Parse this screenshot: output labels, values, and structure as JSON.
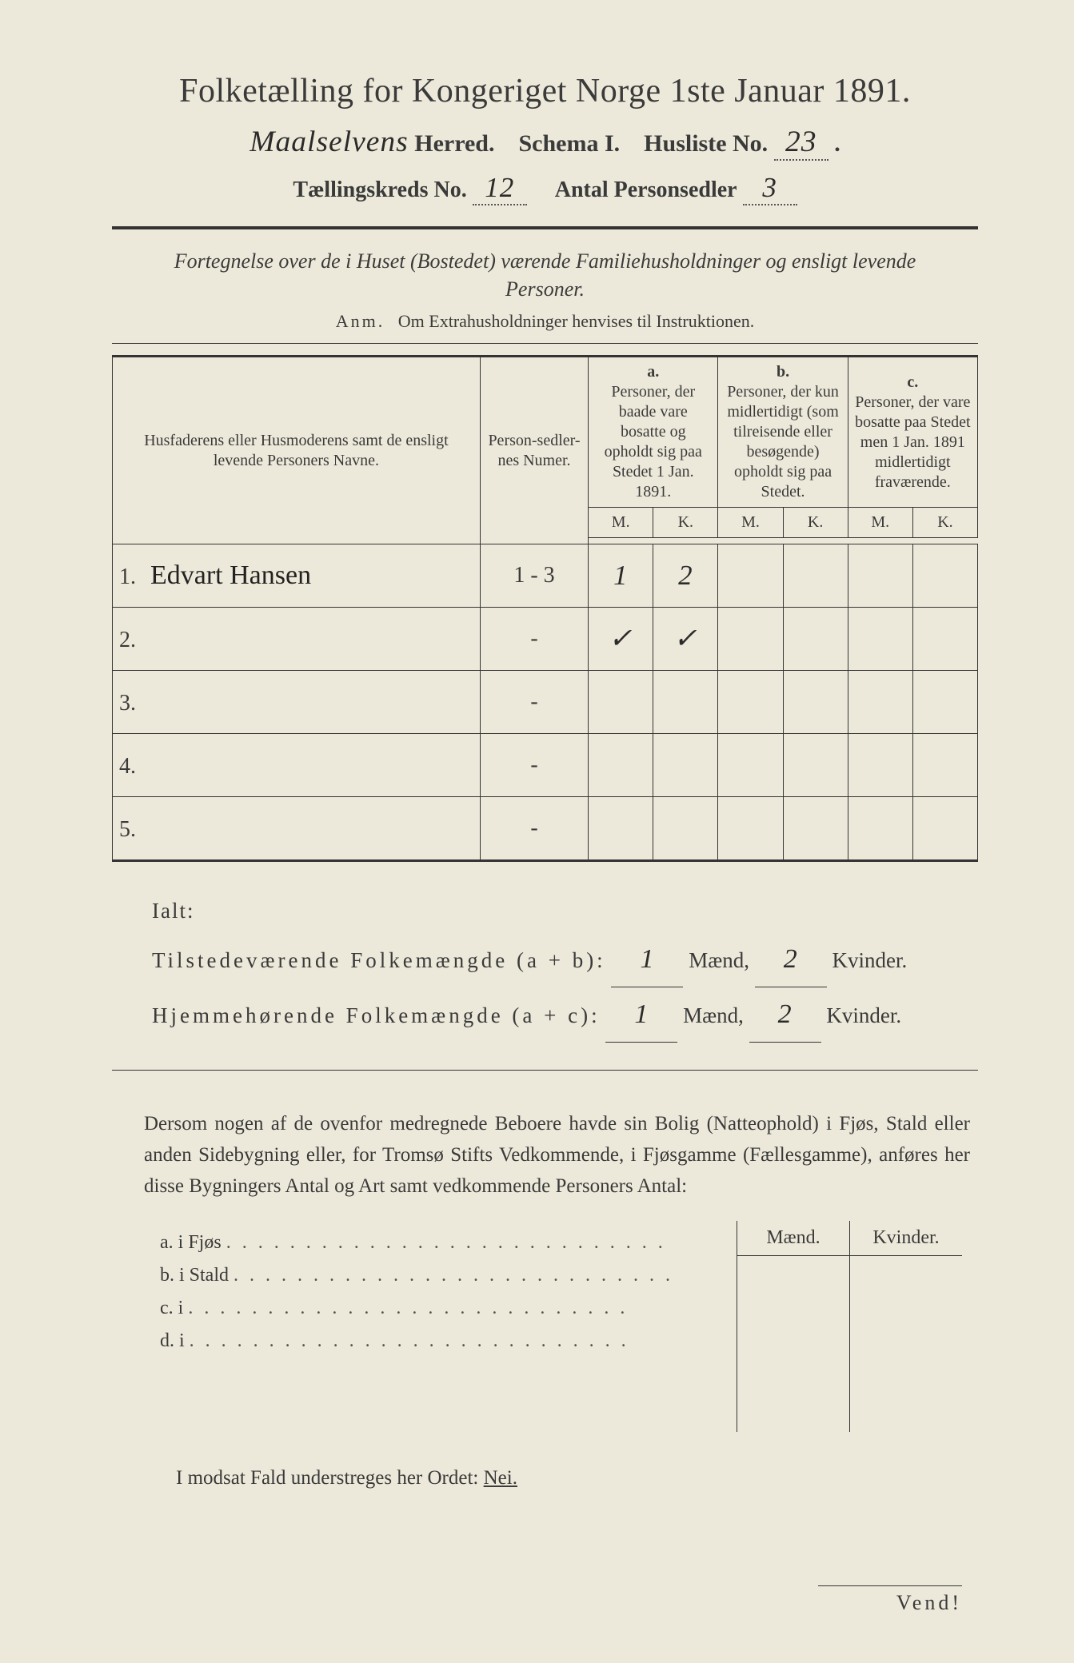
{
  "header": {
    "title": "Folketælling for Kongeriget Norge 1ste Januar 1891.",
    "herred_name": "Maalselvens",
    "herred_label": "Herred.",
    "schema_label": "Schema I.",
    "husliste_label": "Husliste No.",
    "husliste_no": "23",
    "kreds_label": "Tællingskreds No.",
    "kreds_no": "12",
    "antal_label": "Antal Personsedler",
    "antal_val": "3"
  },
  "intro": {
    "line": "Fortegnelse over de i Huset (Bostedet) værende Familiehusholdninger og ensligt levende Personer.",
    "anm_label": "Anm.",
    "anm_text": "Om Extrahusholdninger henvises til Instruktionen."
  },
  "table": {
    "col_name": "Husfaderens eller Husmoderens samt de ensligt levende Personers Navne.",
    "col_num": "Person-sedler-nes Numer.",
    "group_a": "a.",
    "group_a_text": "Personer, der baade vare bosatte og opholdt sig paa Stedet 1 Jan. 1891.",
    "group_b": "b.",
    "group_b_text": "Personer, der kun midlertidigt (som tilreisende eller besøgende) opholdt sig paa Stedet.",
    "group_c": "c.",
    "group_c_text": "Personer, der vare bosatte paa Stedet men 1 Jan. 1891 midlertidigt fraværende.",
    "mk_m": "M.",
    "mk_k": "K.",
    "rows": [
      {
        "n": "1.",
        "name": "Edvart Hansen",
        "num": "1 - 3",
        "a_m": "1",
        "a_k": "2",
        "b_m": "",
        "b_k": "",
        "c_m": "",
        "c_k": ""
      },
      {
        "n": "2.",
        "name": "",
        "num": "-",
        "a_m": "✓",
        "a_k": "✓",
        "b_m": "",
        "b_k": "",
        "c_m": "",
        "c_k": ""
      },
      {
        "n": "3.",
        "name": "",
        "num": "-",
        "a_m": "",
        "a_k": "",
        "b_m": "",
        "b_k": "",
        "c_m": "",
        "c_k": ""
      },
      {
        "n": "4.",
        "name": "",
        "num": "-",
        "a_m": "",
        "a_k": "",
        "b_m": "",
        "b_k": "",
        "c_m": "",
        "c_k": ""
      },
      {
        "n": "5.",
        "name": "",
        "num": "-",
        "a_m": "",
        "a_k": "",
        "b_m": "",
        "b_k": "",
        "c_m": "",
        "c_k": ""
      }
    ]
  },
  "totals": {
    "ialt": "Ialt:",
    "line1_label": "Tilstedeværende Folkemængde (a + b):",
    "line2_label": "Hjemmehørende Folkemængde (a + c):",
    "maend": "Mænd,",
    "kvinder": "Kvinder.",
    "l1_m": "1",
    "l1_k": "2",
    "l2_m": "1",
    "l2_k": "2"
  },
  "paragraph": "Dersom nogen af de ovenfor medregnede Beboere havde sin Bolig (Natteophold) i Fjøs, Stald eller anden Sidebygning eller, for Tromsø Stifts Vedkommende, i Fjøsgamme (Fællesgamme), anføres her disse Bygningers Antal og Art samt vedkommende Personers Antal:",
  "side": {
    "head_m": "Mænd.",
    "head_k": "Kvinder.",
    "rows": [
      {
        "lbl": "a.  i     Fjøs"
      },
      {
        "lbl": "b.  i     Stald"
      },
      {
        "lbl": "c.  i"
      },
      {
        "lbl": "d.  i"
      }
    ]
  },
  "nei": {
    "text": "I modsat Fald understreges her Ordet:",
    "word": "Nei."
  },
  "vend": "Vend!",
  "colors": {
    "paper": "#ede9da",
    "ink": "#3a3a3a",
    "rule": "#333333"
  }
}
